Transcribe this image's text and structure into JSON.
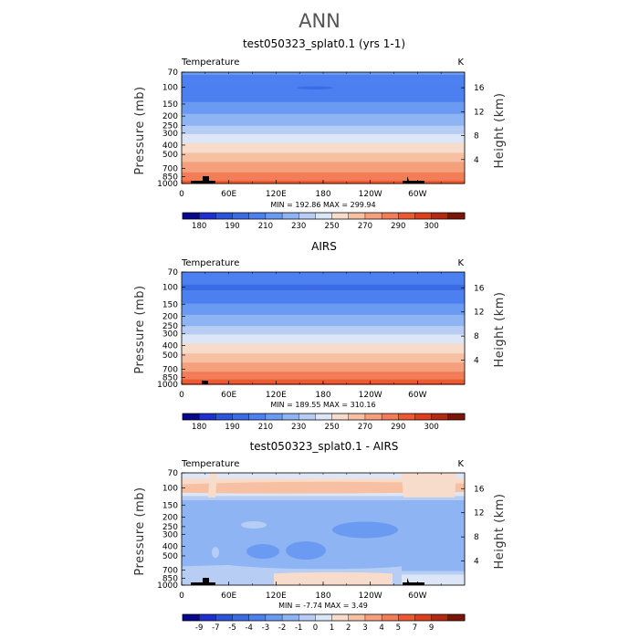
{
  "figure": {
    "title": "ANN"
  },
  "chart_data": [
    {
      "type": "heatmap",
      "title": "test050323_splat0.1 (yrs 1-1)",
      "variable": "Temperature",
      "units": "K",
      "xlabel": "",
      "ylabel": "Pressure (mb)",
      "ylabel_right": "Height (km)",
      "x_ticks": [
        "0",
        "60E",
        "120E",
        "180",
        "120W",
        "60W"
      ],
      "y_ticks": [
        "70",
        "100",
        "150",
        "200",
        "250",
        "300",
        "400",
        "500",
        "700",
        "850",
        "1000"
      ],
      "y_ticks_right": [
        "16",
        "12",
        "8",
        "4"
      ],
      "min_max_text": "MIN = 192.86   MAX = 299.94",
      "min": 192.86,
      "max": 299.94,
      "levels": [
        180,
        185,
        190,
        200,
        210,
        220,
        230,
        240,
        250,
        260,
        270,
        280,
        290,
        295,
        300
      ],
      "colorbar_labels": [
        "180",
        "190",
        "210",
        "230",
        "250",
        "270",
        "290",
        "300"
      ],
      "profile": [
        {
          "p": 70,
          "v": 212
        },
        {
          "p": 100,
          "v": 200
        },
        {
          "p": 130,
          "v": 206
        },
        {
          "p": 160,
          "v": 214
        },
        {
          "p": 200,
          "v": 222
        },
        {
          "p": 250,
          "v": 230
        },
        {
          "p": 300,
          "v": 239
        },
        {
          "p": 400,
          "v": 252
        },
        {
          "p": 500,
          "v": 262
        },
        {
          "p": 600,
          "v": 270
        },
        {
          "p": 700,
          "v": 276
        },
        {
          "p": 850,
          "v": 285
        },
        {
          "p": 1000,
          "v": 294
        }
      ]
    },
    {
      "type": "heatmap",
      "title": "AIRS",
      "variable": "Temperature",
      "units": "K",
      "xlabel": "",
      "ylabel": "Pressure (mb)",
      "ylabel_right": "Height (km)",
      "x_ticks": [
        "0",
        "60E",
        "120E",
        "180",
        "120W",
        "60W"
      ],
      "y_ticks": [
        "70",
        "100",
        "150",
        "200",
        "250",
        "300",
        "400",
        "500",
        "700",
        "850",
        "1000"
      ],
      "y_ticks_right": [
        "16",
        "12",
        "8",
        "4"
      ],
      "min_max_text": "MIN = 189.55   MAX = 310.16",
      "min": 189.55,
      "max": 310.16,
      "levels": [
        180,
        185,
        190,
        200,
        210,
        220,
        230,
        240,
        250,
        260,
        270,
        280,
        290,
        295,
        300
      ],
      "colorbar_labels": [
        "180",
        "190",
        "210",
        "230",
        "250",
        "270",
        "290",
        "300"
      ],
      "profile": [
        {
          "p": 70,
          "v": 210
        },
        {
          "p": 100,
          "v": 198
        },
        {
          "p": 130,
          "v": 205
        },
        {
          "p": 160,
          "v": 213
        },
        {
          "p": 200,
          "v": 221
        },
        {
          "p": 250,
          "v": 230
        },
        {
          "p": 300,
          "v": 239
        },
        {
          "p": 400,
          "v": 252
        },
        {
          "p": 500,
          "v": 262
        },
        {
          "p": 600,
          "v": 270
        },
        {
          "p": 700,
          "v": 277
        },
        {
          "p": 850,
          "v": 287
        },
        {
          "p": 1000,
          "v": 296
        }
      ]
    },
    {
      "type": "heatmap",
      "title": "test050323_splat0.1 - AIRS",
      "variable": "Temperature",
      "units": "K",
      "xlabel": "",
      "ylabel": "Pressure (mb)",
      "ylabel_right": "Height (km)",
      "x_ticks": [
        "0",
        "60E",
        "120E",
        "180",
        "120W",
        "60W"
      ],
      "y_ticks": [
        "70",
        "100",
        "150",
        "200",
        "250",
        "300",
        "400",
        "500",
        "700",
        "850",
        "1000"
      ],
      "y_ticks_right": [
        "16",
        "12",
        "8",
        "4"
      ],
      "min_max_text": "MIN =   -7.74   MAX =     3.49",
      "min": -7.74,
      "max": 3.49,
      "levels": [
        -9,
        -7,
        -5,
        -4,
        -3,
        -2,
        -1,
        0,
        1,
        2,
        3,
        4,
        5,
        7,
        9
      ],
      "colorbar_labels": [
        "-9",
        "-7",
        "-5",
        "-4",
        "-3",
        "-2",
        "-1",
        "0",
        "1",
        "2",
        "3",
        "4",
        "5",
        "7",
        "9"
      ],
      "profile": [
        {
          "p": 70,
          "v": 0.5
        },
        {
          "p": 90,
          "v": 1.5
        },
        {
          "p": 110,
          "v": 1.0
        },
        {
          "p": 140,
          "v": -1.5
        },
        {
          "p": 200,
          "v": -1.6
        },
        {
          "p": 300,
          "v": -1.6
        },
        {
          "p": 500,
          "v": -1.5
        },
        {
          "p": 700,
          "v": -1.2
        },
        {
          "p": 800,
          "v": 0.2
        },
        {
          "p": 1000,
          "v": 0.3
        }
      ]
    }
  ],
  "colormap": [
    "#08088a",
    "#1f2fd0",
    "#2d55dc",
    "#3b6ce6",
    "#4d80f0",
    "#6b9af2",
    "#8fb4f3",
    "#b7cdf4",
    "#dce6f6",
    "#f7dccb",
    "#f7c0a3",
    "#f5a07c",
    "#f27d58",
    "#ec5a33",
    "#dd3f1c",
    "#b32912",
    "#7a1508"
  ],
  "land_color": "#000000"
}
